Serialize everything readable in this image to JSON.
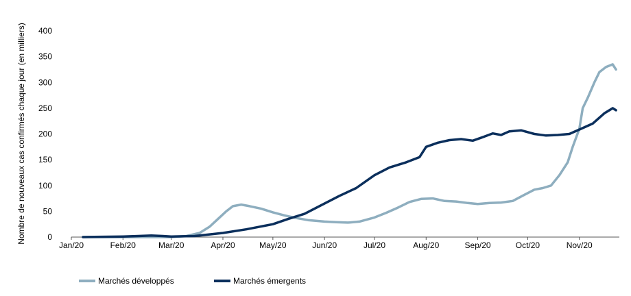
{
  "chart_data": {
    "type": "line",
    "ylabel": "Nombre de nouveaux cas confirmés chaque jour (en milliers)",
    "xlabel": "",
    "ylim": [
      0,
      400
    ],
    "yticks": [
      0,
      50,
      100,
      150,
      200,
      250,
      300,
      350,
      400
    ],
    "xlim": [
      "2020-01-01",
      "2020-11-25"
    ],
    "xticks": [
      {
        "date": "2020-01-01",
        "label": "Jan/20"
      },
      {
        "date": "2020-02-01",
        "label": "Feb/20"
      },
      {
        "date": "2020-03-01",
        "label": "Mar/20"
      },
      {
        "date": "2020-04-01",
        "label": "Apr/20"
      },
      {
        "date": "2020-05-01",
        "label": "May/20"
      },
      {
        "date": "2020-06-01",
        "label": "Jun/20"
      },
      {
        "date": "2020-07-01",
        "label": "Jul/20"
      },
      {
        "date": "2020-08-01",
        "label": "Aug/20"
      },
      {
        "date": "2020-09-01",
        "label": "Sep/20"
      },
      {
        "date": "2020-10-01",
        "label": "Oct/20"
      },
      {
        "date": "2020-11-01",
        "label": "Nov/20"
      }
    ],
    "grid": false,
    "legend": "bottom-left",
    "series": [
      {
        "name": "Marchés développés",
        "color": "#8eaebf",
        "points": [
          [
            "2020-01-08",
            0
          ],
          [
            "2020-02-01",
            0
          ],
          [
            "2020-03-01",
            0
          ],
          [
            "2020-03-10",
            2
          ],
          [
            "2020-03-18",
            8
          ],
          [
            "2020-03-24",
            20
          ],
          [
            "2020-03-29",
            35
          ],
          [
            "2020-04-03",
            50
          ],
          [
            "2020-04-07",
            60
          ],
          [
            "2020-04-12",
            63
          ],
          [
            "2020-04-17",
            60
          ],
          [
            "2020-04-24",
            55
          ],
          [
            "2020-05-01",
            48
          ],
          [
            "2020-05-08",
            42
          ],
          [
            "2020-05-15",
            37
          ],
          [
            "2020-05-22",
            33
          ],
          [
            "2020-06-01",
            30
          ],
          [
            "2020-06-08",
            29
          ],
          [
            "2020-06-15",
            28
          ],
          [
            "2020-06-22",
            30
          ],
          [
            "2020-07-01",
            38
          ],
          [
            "2020-07-08",
            47
          ],
          [
            "2020-07-15",
            57
          ],
          [
            "2020-07-22",
            68
          ],
          [
            "2020-07-29",
            74
          ],
          [
            "2020-08-05",
            75
          ],
          [
            "2020-08-12",
            70
          ],
          [
            "2020-08-19",
            69
          ],
          [
            "2020-08-26",
            66
          ],
          [
            "2020-09-01",
            64
          ],
          [
            "2020-09-08",
            66
          ],
          [
            "2020-09-15",
            67
          ],
          [
            "2020-09-22",
            70
          ],
          [
            "2020-09-29",
            82
          ],
          [
            "2020-10-05",
            92
          ],
          [
            "2020-10-10",
            95
          ],
          [
            "2020-10-15",
            100
          ],
          [
            "2020-10-20",
            120
          ],
          [
            "2020-10-25",
            145
          ],
          [
            "2020-10-28",
            175
          ],
          [
            "2020-11-01",
            210
          ],
          [
            "2020-11-03",
            250
          ],
          [
            "2020-11-06",
            270
          ],
          [
            "2020-11-10",
            300
          ],
          [
            "2020-11-13",
            320
          ],
          [
            "2020-11-17",
            330
          ],
          [
            "2020-11-21",
            335
          ],
          [
            "2020-11-23",
            325
          ]
        ]
      },
      {
        "name": "Marchés émergents",
        "color": "#0b2f5c",
        "points": [
          [
            "2020-01-08",
            0
          ],
          [
            "2020-02-01",
            1
          ],
          [
            "2020-02-10",
            2
          ],
          [
            "2020-02-18",
            3
          ],
          [
            "2020-02-25",
            2
          ],
          [
            "2020-03-01",
            1
          ],
          [
            "2020-03-15",
            2
          ],
          [
            "2020-04-01",
            8
          ],
          [
            "2020-04-15",
            15
          ],
          [
            "2020-05-01",
            25
          ],
          [
            "2020-05-10",
            35
          ],
          [
            "2020-05-20",
            45
          ],
          [
            "2020-06-01",
            65
          ],
          [
            "2020-06-10",
            80
          ],
          [
            "2020-06-20",
            95
          ],
          [
            "2020-07-01",
            120
          ],
          [
            "2020-07-10",
            135
          ],
          [
            "2020-07-20",
            145
          ],
          [
            "2020-07-28",
            155
          ],
          [
            "2020-08-01",
            175
          ],
          [
            "2020-08-08",
            183
          ],
          [
            "2020-08-15",
            188
          ],
          [
            "2020-08-22",
            190
          ],
          [
            "2020-08-29",
            187
          ],
          [
            "2020-09-05",
            195
          ],
          [
            "2020-09-10",
            201
          ],
          [
            "2020-09-15",
            198
          ],
          [
            "2020-09-20",
            205
          ],
          [
            "2020-09-27",
            207
          ],
          [
            "2020-10-05",
            200
          ],
          [
            "2020-10-12",
            197
          ],
          [
            "2020-10-19",
            198
          ],
          [
            "2020-10-26",
            200
          ],
          [
            "2020-11-02",
            210
          ],
          [
            "2020-11-09",
            220
          ],
          [
            "2020-11-16",
            240
          ],
          [
            "2020-11-21",
            250
          ],
          [
            "2020-11-23",
            246
          ]
        ]
      }
    ]
  }
}
